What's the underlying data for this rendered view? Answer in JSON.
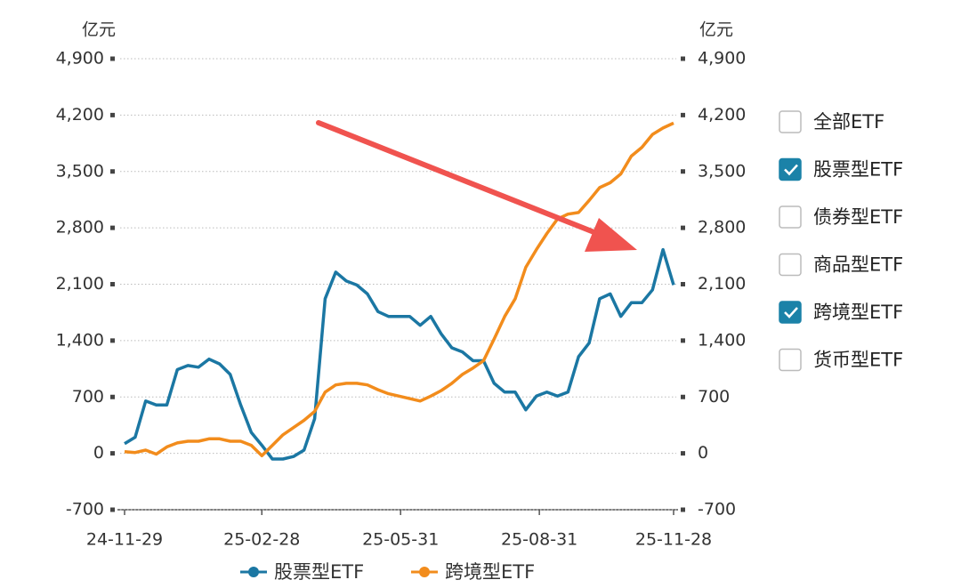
{
  "chart_data": {
    "type": "line",
    "y_unit": "亿元",
    "y2_unit": "亿元",
    "x": [
      "24-11-29",
      "24-12-06",
      "24-12-13",
      "24-12-20",
      "24-12-27",
      "25-01-03",
      "25-01-10",
      "25-01-17",
      "25-01-24",
      "25-01-31",
      "25-02-07",
      "25-02-14",
      "25-02-21",
      "25-02-28",
      "25-03-07",
      "25-03-14",
      "25-03-21",
      "25-03-28",
      "25-04-04",
      "25-04-11",
      "25-04-18",
      "25-04-25",
      "25-05-02",
      "25-05-09",
      "25-05-16",
      "25-05-23",
      "25-05-30",
      "25-06-06",
      "25-06-13",
      "25-06-20",
      "25-06-27",
      "25-07-04",
      "25-07-11",
      "25-07-18",
      "25-07-25",
      "25-08-01",
      "25-08-08",
      "25-08-15",
      "25-08-22",
      "25-08-29",
      "25-09-05",
      "25-09-12",
      "25-09-19",
      "25-09-26",
      "25-10-03",
      "25-10-10",
      "25-10-17",
      "25-10-24",
      "25-10-31",
      "25-11-07",
      "25-11-14",
      "25-11-21",
      "25-11-28"
    ],
    "series": [
      {
        "name": "股票型ETF",
        "color": "#1b77a3",
        "values": [
          120,
          200,
          650,
          600,
          600,
          1040,
          1090,
          1070,
          1170,
          1110,
          980,
          600,
          260,
          100,
          -70,
          -70,
          -40,
          40,
          430,
          1920,
          2250,
          2140,
          2090,
          1980,
          1760,
          1700,
          1700,
          1700,
          1590,
          1700,
          1480,
          1310,
          1260,
          1150,
          1150,
          870,
          760,
          760,
          540,
          710,
          760,
          710,
          760,
          1200,
          1370,
          1920,
          1980,
          1700,
          1870,
          1870,
          2030,
          2530,
          2090
        ]
      },
      {
        "name": "跨境型ETF",
        "color": "#f28c1c",
        "values": [
          20,
          10,
          40,
          -10,
          80,
          130,
          150,
          150,
          180,
          180,
          150,
          150,
          100,
          -30,
          100,
          230,
          320,
          410,
          520,
          760,
          850,
          870,
          870,
          850,
          790,
          740,
          710,
          680,
          650,
          710,
          780,
          870,
          980,
          1060,
          1150,
          1420,
          1700,
          1920,
          2310,
          2530,
          2730,
          2910,
          2970,
          2990,
          3140,
          3300,
          3360,
          3470,
          3690,
          3800,
          3960,
          4040,
          4100
        ]
      }
    ],
    "xlim": [
      "24-11-29",
      "25-11-28"
    ],
    "xticks": [
      "24-11-29",
      "25-02-28",
      "25-05-31",
      "25-08-31",
      "25-11-28"
    ],
    "ylim": [
      -700,
      4900
    ],
    "yticks": [
      -700,
      0,
      700,
      {
        "value": 1400,
        "label": "1,400"
      },
      {
        "value": 2100,
        "label": "2,100"
      },
      {
        "value": 2800,
        "label": "2,800"
      },
      {
        "value": 3500,
        "label": "3,500"
      },
      {
        "value": 4200,
        "label": "4,200"
      },
      {
        "value": 4900,
        "label": "4,900"
      }
    ],
    "y2lim": [
      -700,
      4900
    ],
    "y2ticks": [
      -700,
      0,
      700,
      {
        "value": 1400,
        "label": "1,400"
      },
      {
        "value": 2100,
        "label": "2,100"
      },
      {
        "value": 2800,
        "label": "2,800"
      },
      {
        "value": 3500,
        "label": "3,500"
      },
      {
        "value": 4200,
        "label": "4,200"
      },
      {
        "value": 4900,
        "label": "4,900"
      }
    ],
    "grid": true,
    "legend": "bottom"
  },
  "filter_options": [
    {
      "label": "全部ETF",
      "checked": false
    },
    {
      "label": "股票型ETF",
      "checked": true
    },
    {
      "label": "债券型ETF",
      "checked": false
    },
    {
      "label": "商品型ETF",
      "checked": false
    },
    {
      "label": "跨境型ETF",
      "checked": true
    },
    {
      "label": "货币型ETF",
      "checked": false
    }
  ]
}
